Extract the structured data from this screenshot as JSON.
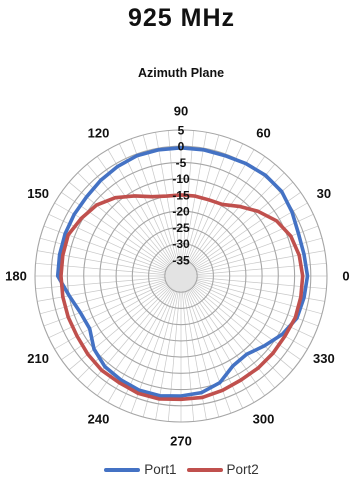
{
  "figure_title": "925 MHz",
  "chart_data": {
    "type": "polar-line",
    "title": "Azimuth Plane",
    "angle_ticks": [
      "0",
      "30",
      "60",
      "90",
      "120",
      "150",
      "180",
      "210",
      "240",
      "270",
      "300",
      "330"
    ],
    "angles": [
      0,
      30,
      60,
      90,
      120,
      150,
      180,
      210,
      240,
      270,
      300,
      330
    ],
    "radial_ticks": [
      "5",
      "0",
      "-5",
      "-10",
      "-15",
      "-20",
      "-25",
      "-30",
      "-35"
    ],
    "radial_values": [
      5,
      0,
      -5,
      -10,
      -15,
      -20,
      -25,
      -30,
      -35
    ],
    "rlim": [
      -40,
      5
    ],
    "angle_unit": "degrees",
    "angle_direction": "counter-clockwise, 0 at right",
    "grid": true,
    "legend_position": "bottom",
    "series": [
      {
        "name": "Port1",
        "color": "#4472C4",
        "points": [
          [
            0,
            -1
          ],
          [
            10,
            -1.5
          ],
          [
            20,
            -1.5
          ],
          [
            30,
            -0.5
          ],
          [
            40,
            0.5
          ],
          [
            50,
            0.5
          ],
          [
            60,
            0
          ],
          [
            70,
            -0.5
          ],
          [
            80,
            -0.5
          ],
          [
            90,
            -0.5
          ],
          [
            100,
            -0.5
          ],
          [
            110,
            -0.5
          ],
          [
            120,
            -1
          ],
          [
            130,
            -1.5
          ],
          [
            140,
            -2
          ],
          [
            150,
            -2
          ],
          [
            160,
            -2
          ],
          [
            170,
            -2
          ],
          [
            180,
            -2
          ],
          [
            190,
            -5
          ],
          [
            200,
            -7
          ],
          [
            210,
            -7.5
          ],
          [
            220,
            -5
          ],
          [
            230,
            -3.5
          ],
          [
            240,
            -3
          ],
          [
            250,
            -2.5
          ],
          [
            260,
            -2.5
          ],
          [
            270,
            -3
          ],
          [
            280,
            -3.5
          ],
          [
            290,
            -5
          ],
          [
            300,
            -8
          ],
          [
            310,
            -8.5
          ],
          [
            320,
            -6.5
          ],
          [
            330,
            -4
          ],
          [
            340,
            -2
          ],
          [
            350,
            -1.5
          ],
          [
            360,
            -1
          ]
        ]
      },
      {
        "name": "Port2",
        "color": "#C0504D",
        "points": [
          [
            0,
            -2.5
          ],
          [
            10,
            -3
          ],
          [
            20,
            -4
          ],
          [
            30,
            -6
          ],
          [
            40,
            -9
          ],
          [
            50,
            -12
          ],
          [
            60,
            -14.5
          ],
          [
            70,
            -15
          ],
          [
            80,
            -15
          ],
          [
            90,
            -15
          ],
          [
            100,
            -15
          ],
          [
            110,
            -14
          ],
          [
            120,
            -11.5
          ],
          [
            130,
            -8.5
          ],
          [
            140,
            -6
          ],
          [
            150,
            -4.5
          ],
          [
            160,
            -3
          ],
          [
            170,
            -3
          ],
          [
            180,
            -3
          ],
          [
            190,
            -3
          ],
          [
            200,
            -3
          ],
          [
            210,
            -3
          ],
          [
            220,
            -2.5
          ],
          [
            230,
            -2
          ],
          [
            240,
            -2
          ],
          [
            250,
            -1.5
          ],
          [
            260,
            -1.5
          ],
          [
            270,
            -2
          ],
          [
            280,
            -2
          ],
          [
            290,
            -2.5
          ],
          [
            300,
            -3
          ],
          [
            310,
            -3
          ],
          [
            320,
            -3
          ],
          [
            330,
            -3
          ],
          [
            340,
            -2.5
          ],
          [
            350,
            -2.5
          ],
          [
            360,
            -2.5
          ]
        ]
      }
    ]
  }
}
